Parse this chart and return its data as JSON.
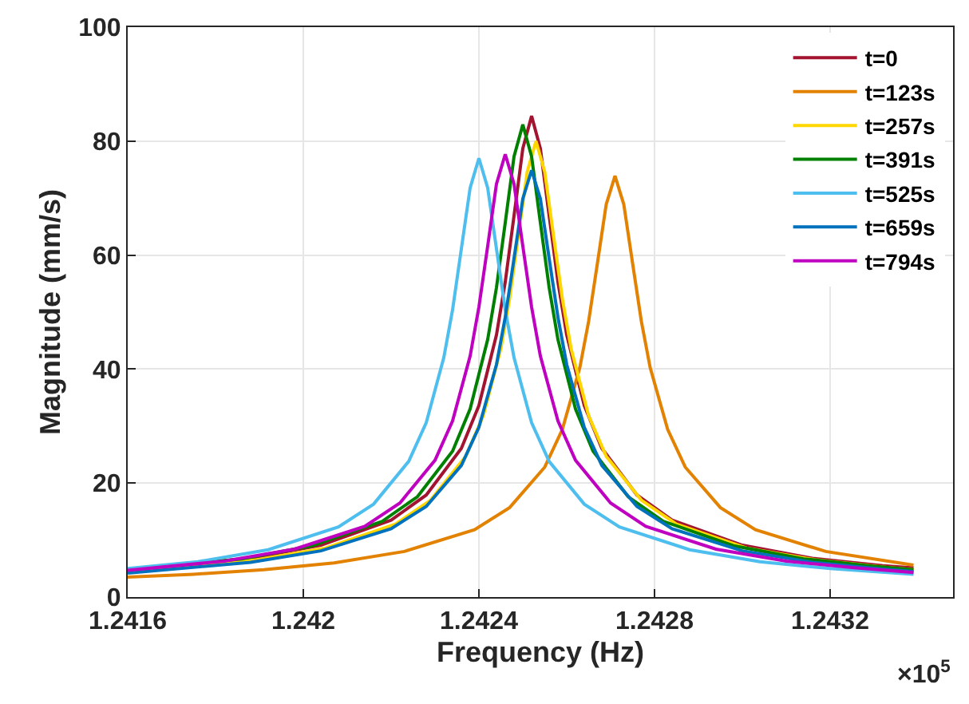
{
  "chart_data": {
    "type": "line",
    "xlabel": "Frequency (Hz)",
    "ylabel": "Magnitude (mm/s)",
    "annotations": [
      "×10$^{5}$"
    ],
    "xlim": [
      1.2416,
      1.24348
    ],
    "xticks": [
      1.2416,
      1.242,
      1.2424,
      1.2428,
      1.2432
    ],
    "ylim": [
      0,
      100
    ],
    "yticks": [
      0,
      20,
      40,
      60,
      80,
      100
    ],
    "grid": true,
    "legend": "top right",
    "marker": "none",
    "line_style": "solid",
    "series": [
      {
        "name": "t=0",
        "color": "#a2142f",
        "x": [
          1.2416,
          1.24188,
          1.24204,
          1.2422,
          1.24228,
          1.24236,
          1.2424,
          1.24244,
          1.24246,
          1.24248,
          1.2425,
          1.24252,
          1.24254,
          1.24256,
          1.24258,
          1.2426,
          1.24264,
          1.24268,
          1.24276,
          1.24284,
          1.243,
          1.24316,
          1.24332,
          1.24339
        ],
        "values": [
          4.8,
          6.8,
          9.1,
          13.5,
          17.9,
          26.1,
          33.6,
          46.0,
          55.3,
          66.9,
          78.7,
          84.4,
          78.7,
          66.9,
          55.3,
          46.0,
          33.6,
          26.1,
          17.9,
          13.5,
          9.1,
          6.8,
          5.5,
          5.1
        ]
      },
      {
        "name": "t=123s",
        "color": "#e38200",
        "x": [
          1.2416,
          1.24175,
          1.24191,
          1.24207,
          1.24223,
          1.24239,
          1.24247,
          1.24255,
          1.24259,
          1.24263,
          1.24265,
          1.24267,
          1.24269,
          1.24271,
          1.24273,
          1.24275,
          1.24277,
          1.24279,
          1.24283,
          1.24287,
          1.24295,
          1.24303,
          1.24319,
          1.24339
        ],
        "values": [
          3.5,
          4.0,
          4.8,
          6.0,
          8.0,
          11.8,
          15.7,
          22.8,
          29.4,
          40.3,
          48.4,
          58.6,
          68.9,
          73.9,
          68.9,
          58.6,
          48.4,
          40.3,
          29.4,
          22.8,
          15.7,
          11.8,
          8.0,
          5.6
        ]
      },
      {
        "name": "t=257s",
        "color": "#ffd700",
        "x": [
          1.2416,
          1.24189,
          1.24205,
          1.24221,
          1.24229,
          1.24237,
          1.24241,
          1.24245,
          1.24247,
          1.24249,
          1.24251,
          1.24253,
          1.24255,
          1.24257,
          1.24259,
          1.24261,
          1.24265,
          1.24269,
          1.24277,
          1.24285,
          1.24301,
          1.24317,
          1.24333,
          1.24339
        ],
        "values": [
          4.5,
          6.5,
          8.6,
          12.8,
          17.0,
          24.7,
          31.8,
          43.6,
          52.4,
          63.4,
          74.6,
          80,
          74.6,
          63.4,
          52.4,
          43.6,
          31.8,
          24.7,
          17.0,
          12.8,
          8.6,
          6.5,
          5.2,
          4.8
        ]
      },
      {
        "name": "t=391s",
        "color": "#008000",
        "x": [
          1.2416,
          1.24186,
          1.24202,
          1.24218,
          1.24226,
          1.24234,
          1.24238,
          1.24242,
          1.24244,
          1.24246,
          1.24248,
          1.2425,
          1.24252,
          1.24254,
          1.24256,
          1.24258,
          1.24262,
          1.24266,
          1.24274,
          1.24282,
          1.24298,
          1.24314,
          1.2433,
          1.24339
        ],
        "values": [
          4.8,
          6.7,
          9.0,
          13.3,
          17.6,
          25.6,
          33.0,
          45.2,
          54.3,
          65.7,
          77.3,
          82.9,
          77.3,
          65.7,
          54.3,
          45.2,
          33.0,
          25.6,
          17.6,
          13.3,
          9.0,
          6.7,
          5.4,
          4.8
        ]
      },
      {
        "name": "t=525s",
        "color": "#4dbeee",
        "x": [
          1.2416,
          1.24176,
          1.24192,
          1.24208,
          1.24216,
          1.24224,
          1.24228,
          1.24232,
          1.24234,
          1.24236,
          1.24238,
          1.2424,
          1.24242,
          1.24244,
          1.24246,
          1.24248,
          1.24252,
          1.24256,
          1.24264,
          1.24272,
          1.24288,
          1.24304,
          1.2432,
          1.24339
        ],
        "values": [
          5.0,
          6.2,
          8.3,
          12.3,
          16.3,
          23.8,
          30.6,
          42.0,
          50.4,
          61.1,
          71.8,
          77,
          71.8,
          61.1,
          50.4,
          42.0,
          30.6,
          23.8,
          16.3,
          12.3,
          8.3,
          6.2,
          5.0,
          4.0
        ]
      },
      {
        "name": "t=659s",
        "color": "#0072bd",
        "x": [
          1.2416,
          1.24188,
          1.24204,
          1.2422,
          1.24228,
          1.24236,
          1.2424,
          1.24244,
          1.24246,
          1.24248,
          1.2425,
          1.24252,
          1.24254,
          1.24256,
          1.24258,
          1.2426,
          1.24264,
          1.24268,
          1.24276,
          1.24284,
          1.243,
          1.24316,
          1.24332,
          1.24339
        ],
        "values": [
          4.2,
          6.1,
          8.1,
          12.0,
          15.9,
          23.1,
          29.8,
          40.8,
          49.1,
          59.4,
          69.9,
          74.9,
          69.9,
          59.4,
          49.1,
          40.8,
          29.8,
          23.1,
          15.9,
          12.0,
          8.1,
          6.1,
          4.9,
          4.5
        ]
      },
      {
        "name": "t=794s",
        "color": "#c000c0",
        "x": [
          1.2416,
          1.24182,
          1.24198,
          1.24214,
          1.24222,
          1.2423,
          1.24234,
          1.24238,
          1.2424,
          1.24242,
          1.24244,
          1.24246,
          1.24248,
          1.2425,
          1.24252,
          1.24254,
          1.24258,
          1.24262,
          1.2427,
          1.24278,
          1.24294,
          1.2431,
          1.24326,
          1.24339
        ],
        "values": [
          4.7,
          6.3,
          8.4,
          12.4,
          16.5,
          24.0,
          30.9,
          42.3,
          50.9,
          61.6,
          72.5,
          77.7,
          72.5,
          61.6,
          50.9,
          42.3,
          30.9,
          24.0,
          16.5,
          12.4,
          8.4,
          6.3,
          5.1,
          4.3
        ]
      }
    ]
  }
}
